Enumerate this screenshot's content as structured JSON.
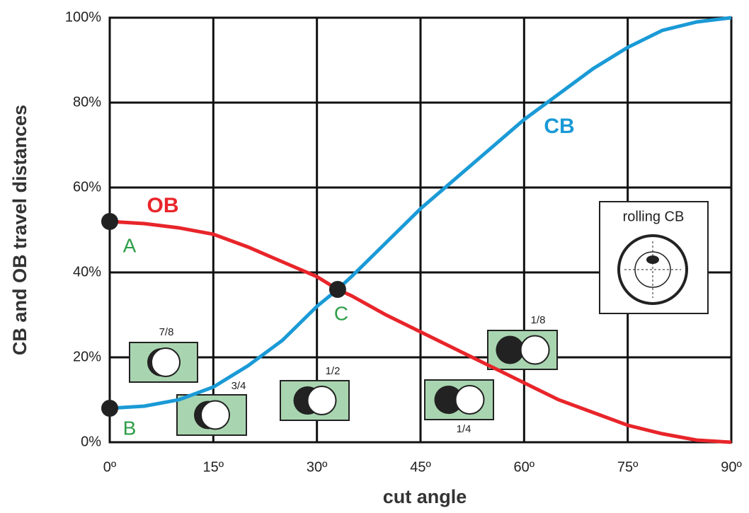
{
  "chart_data": {
    "type": "line",
    "x_label": "cut angle",
    "y_label": "CB and OB travel distances",
    "x": [
      0,
      5,
      10,
      15,
      20,
      25,
      30,
      33,
      35,
      40,
      45,
      50,
      55,
      60,
      65,
      70,
      75,
      80,
      85,
      90
    ],
    "series": [
      {
        "name": "CB",
        "color": "#1a9ad6",
        "values": [
          8,
          8.5,
          10,
          13,
          18,
          24,
          32,
          36,
          39,
          47,
          55,
          62,
          69,
          76,
          82,
          88,
          93,
          97,
          99,
          100
        ]
      },
      {
        "name": "OB",
        "color": "#e8252a",
        "values": [
          52,
          51.5,
          50.5,
          49,
          46,
          42.5,
          39,
          36,
          34.5,
          30,
          26,
          22,
          18,
          14,
          10,
          7,
          4,
          2,
          0.5,
          0
        ]
      }
    ],
    "points": [
      {
        "label": "A",
        "x": 0,
        "y": 52
      },
      {
        "label": "B",
        "x": 0,
        "y": 8
      },
      {
        "label": "C",
        "x": 33,
        "y": 36
      }
    ],
    "insets": [
      "7/8",
      "3/4",
      "1/2",
      "1/4",
      "1/8"
    ],
    "inset_title": "rolling CB",
    "xlim": [
      0,
      90
    ],
    "ylim": [
      0,
      100
    ],
    "xticks": [
      {
        "value": 0,
        "label": "0º"
      },
      {
        "value": 15,
        "label": "15º"
      },
      {
        "value": 30,
        "label": "30º"
      },
      {
        "value": 45,
        "label": "45º"
      },
      {
        "value": 60,
        "label": "60º"
      },
      {
        "value": 75,
        "label": "75º"
      },
      {
        "value": 90,
        "label": "90º"
      }
    ],
    "yticks": [
      {
        "value": 0,
        "label": "0%"
      },
      {
        "value": 20,
        "label": "20%"
      },
      {
        "value": 40,
        "label": "40%"
      },
      {
        "value": 60,
        "label": "60%"
      },
      {
        "value": 80,
        "label": "80%"
      },
      {
        "value": 100,
        "label": "100%"
      }
    ],
    "grid": true
  }
}
